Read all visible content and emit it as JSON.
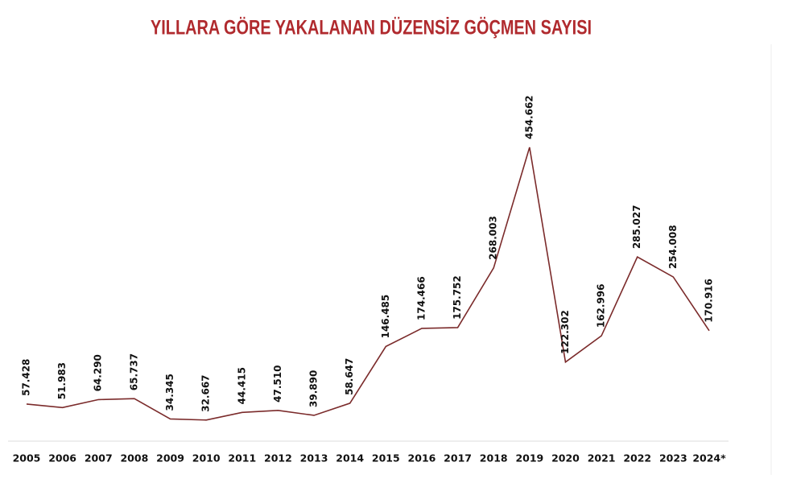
{
  "chart_data": {
    "type": "line",
    "title": "YILLARA GÖRE YAKALANAN DÜZENSİZ GÖÇMEN SAYISI",
    "categories": [
      "2005",
      "2006",
      "2007",
      "2008",
      "2009",
      "2010",
      "2011",
      "2012",
      "2013",
      "2014",
      "2015",
      "2016",
      "2017",
      "2018",
      "2019",
      "2020",
      "2021",
      "2022",
      "2023",
      "2024*"
    ],
    "series": [
      {
        "color": "#7b2b2b",
        "values": [
          57428,
          51983,
          64290,
          65737,
          34345,
          32667,
          44415,
          47510,
          39890,
          58647,
          146485,
          174466,
          175752,
          268003,
          454662,
          122302,
          162996,
          285027,
          254008,
          170916
        ],
        "value_labels": [
          "57.428",
          "51.983",
          "64.290",
          "65.737",
          "34.345",
          "32.667",
          "44.415",
          "47.510",
          "39.890",
          "58.647",
          "146.485",
          "174.466",
          "175.752",
          "268.003",
          "454.662",
          "122.302",
          "162.996",
          "285.027",
          "254.008",
          "170.916"
        ]
      }
    ]
  }
}
